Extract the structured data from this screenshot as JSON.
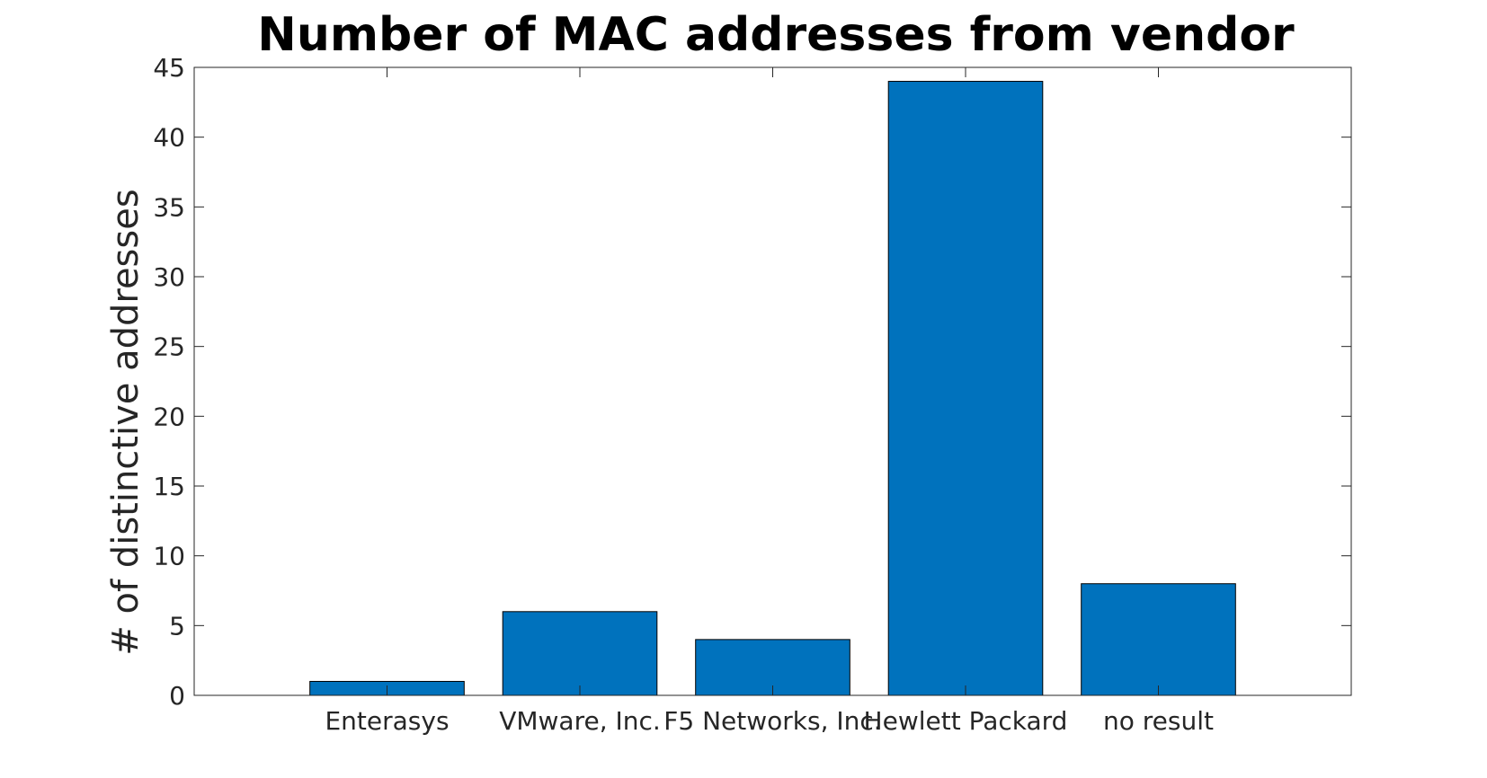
{
  "chart_data": {
    "type": "bar",
    "title": "Number of MAC addresses from vendor",
    "xlabel": "",
    "ylabel": "# of distinctive addresses",
    "categories": [
      "Enterasys",
      "VMware, Inc.",
      "F5 Networks, Inc.",
      "Hewlett Packard",
      "no result"
    ],
    "values": [
      1,
      6,
      4,
      44,
      8
    ],
    "ylim": [
      0,
      45
    ],
    "yticks": [
      0,
      5,
      10,
      15,
      20,
      25,
      30,
      35,
      40,
      45
    ],
    "grid": false,
    "legend": "none",
    "bar_color": "#0072BD"
  }
}
